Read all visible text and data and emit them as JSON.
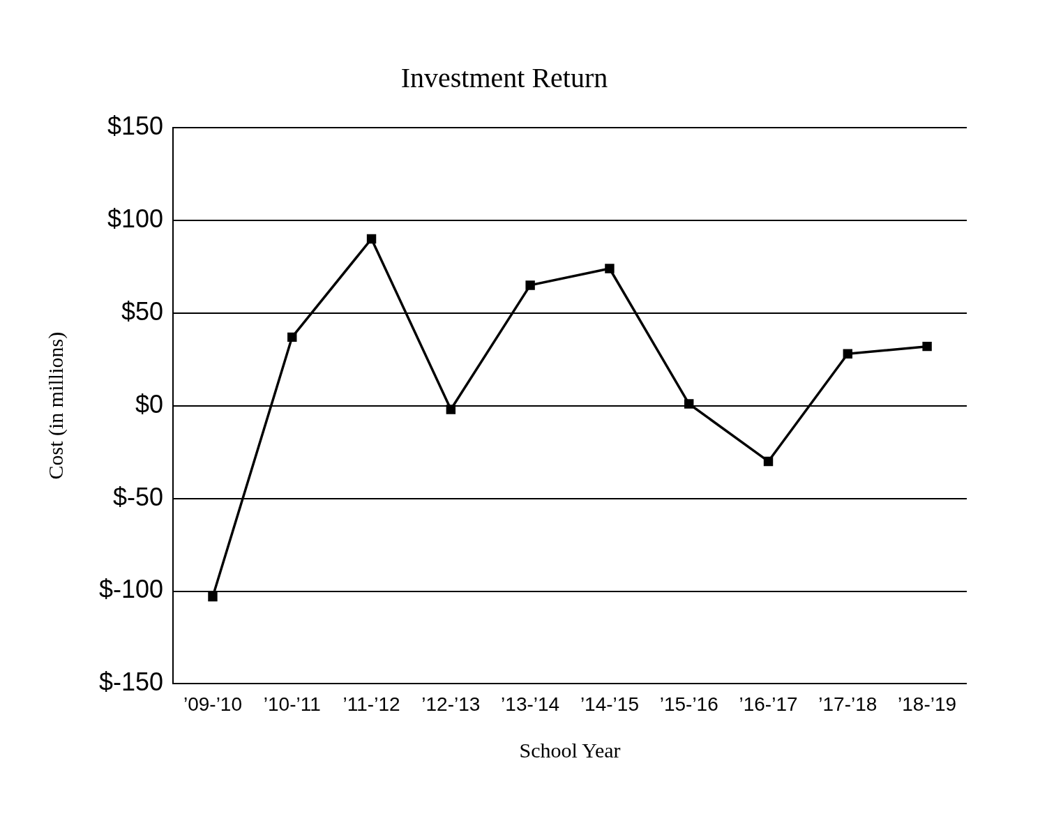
{
  "chart_data": {
    "type": "line",
    "title": "Investment Return",
    "xlabel": "School Year",
    "ylabel": "Cost (in millions)",
    "categories": [
      "’09-’10",
      "’10-’11",
      "’11-’12",
      "’12-’13",
      "’13-’14",
      "’14-’15",
      "’15-’16",
      "’16-’17",
      "’17-’18",
      "’18-’19"
    ],
    "series": [
      {
        "color": "#000000",
        "values": [
          -103,
          37,
          90,
          -2,
          65,
          74,
          1,
          -30,
          28,
          32
        ]
      }
    ],
    "ylim": [
      -150,
      150
    ],
    "yticks": [
      {
        "value": -150,
        "label": "$-150"
      },
      {
        "value": -100,
        "label": "$-100"
      },
      {
        "value": -50,
        "label": "$-50"
      },
      {
        "value": 0,
        "label": "$0"
      },
      {
        "value": 50,
        "label": "$50"
      },
      {
        "value": 100,
        "label": "$100"
      },
      {
        "value": 150,
        "label": "$150"
      }
    ],
    "grid": "y",
    "legend": false,
    "marker": "square",
    "line_style": "solid"
  }
}
